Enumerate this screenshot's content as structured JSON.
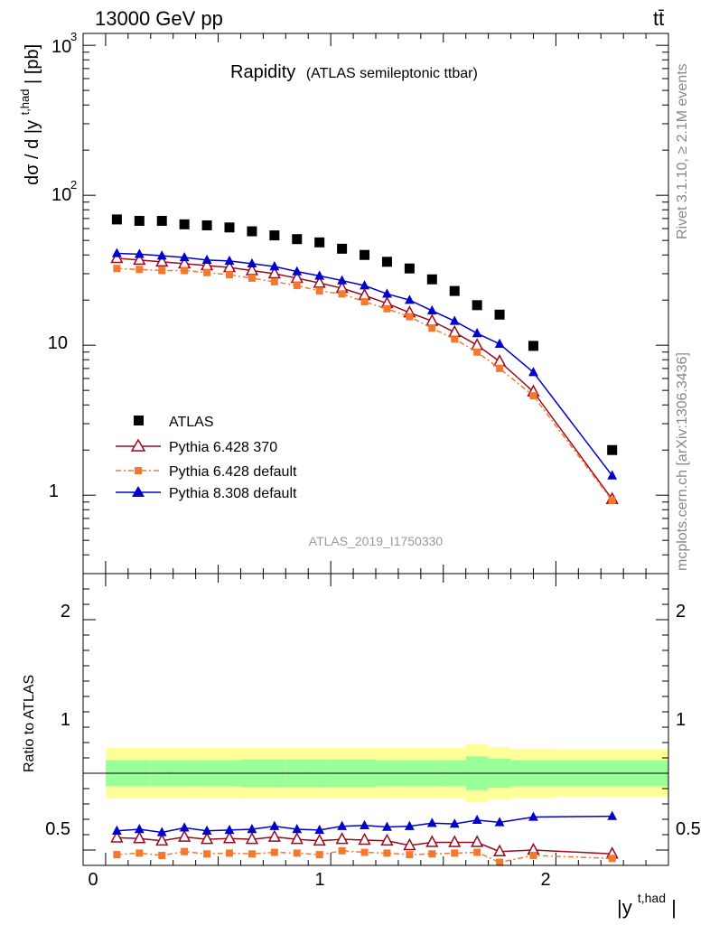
{
  "header": {
    "energy_label": "13000 GeV pp",
    "process_label": "tt̄"
  },
  "side": {
    "rivet_label": "Rivet 3.1.10, ≥ 2.1M events",
    "source_label": "mcplots.cern.ch [arXiv:1306.3436]"
  },
  "colors": {
    "atlas": "#000000",
    "pythia6_370": "#9a0a1e",
    "pythia6_default": "#f5782d",
    "pythia8_default": "#0000cc",
    "band_inner": "#99ff99",
    "band_outer": "#ffff99"
  },
  "chart_data": [
    {
      "type": "scatter",
      "title": "Rapidity",
      "subtitle": "(ATLAS semileptonic ttbar)",
      "ylabel": "dσ / d |y",
      "ylabel_sup": "t,had",
      "ylabel_unit": "| [pb]",
      "yscale": "log",
      "ylim": [
        0.3,
        1200
      ],
      "xlim": [
        -0.1,
        2.5
      ],
      "ytick_labels": [
        "1",
        "10",
        "10",
        "10"
      ],
      "ytick_sups": [
        "",
        "",
        "2",
        "3"
      ],
      "analysis_label": "ATLAS_2019_I1750330",
      "legend_position": "lower-left",
      "x": [
        0.05,
        0.15,
        0.25,
        0.35,
        0.45,
        0.55,
        0.65,
        0.75,
        0.85,
        0.95,
        1.05,
        1.15,
        1.25,
        1.35,
        1.45,
        1.55,
        1.65,
        1.75,
        1.9,
        2.25
      ],
      "series": [
        {
          "name": "ATLAS",
          "marker": "square-filled",
          "values": [
            69,
            67.5,
            67.5,
            64,
            63,
            61,
            57.5,
            54,
            51,
            48.5,
            44,
            40,
            36,
            32.5,
            27.5,
            23,
            18.5,
            16,
            9.9,
            2.0
          ]
        },
        {
          "name": "Pythia 6.428 370",
          "marker": "triangle-open",
          "values": [
            38,
            37,
            36,
            35,
            34,
            33,
            31.5,
            30,
            28,
            26,
            24,
            21.5,
            19,
            16.5,
            14.5,
            12.2,
            10,
            7.8,
            4.9,
            0.94
          ]
        },
        {
          "name": "Pythia 6.428 default",
          "marker": "square-small",
          "values": [
            32.5,
            32,
            31.5,
            31.5,
            30.5,
            29.5,
            28,
            26.5,
            25,
            23,
            22,
            19.5,
            17.5,
            15.5,
            13,
            11,
            9,
            7,
            4.6,
            0.92
          ]
        },
        {
          "name": "Pythia 8.308 default",
          "marker": "triangle-filled",
          "values": [
            41,
            40.5,
            39.5,
            38.5,
            37,
            36.5,
            35,
            33.5,
            31,
            29,
            27,
            25,
            22,
            20,
            17,
            14.5,
            12,
            10.2,
            6.6,
            1.35
          ]
        }
      ]
    },
    {
      "type": "line",
      "ylabel": "Ratio to ATLAS",
      "xlabel": "|y",
      "xlabel_sup": "t,had",
      "xlabel_tail": "|",
      "ylim": [
        0.4,
        2.3
      ],
      "xlim": [
        -0.1,
        2.5
      ],
      "xtick_labels": [
        "0",
        "1",
        "2"
      ],
      "ytick_labels": [
        "0.5",
        "1",
        "2"
      ],
      "x": [
        0.05,
        0.15,
        0.25,
        0.35,
        0.45,
        0.55,
        0.65,
        0.75,
        0.85,
        0.95,
        1.05,
        1.15,
        1.25,
        1.35,
        1.45,
        1.55,
        1.65,
        1.75,
        1.9,
        2.25
      ],
      "bin_edges": [
        0.0,
        0.1,
        0.2,
        0.3,
        0.4,
        0.5,
        0.6,
        0.7,
        0.8,
        0.9,
        1.0,
        1.1,
        1.2,
        1.3,
        1.4,
        1.5,
        1.6,
        1.7,
        1.8,
        2.0,
        2.5
      ],
      "band_inner": [
        0.085,
        0.085,
        0.085,
        0.085,
        0.085,
        0.085,
        0.09,
        0.09,
        0.09,
        0.09,
        0.09,
        0.09,
        0.085,
        0.085,
        0.085,
        0.085,
        0.11,
        0.095,
        0.085,
        0.085
      ],
      "band_outer": [
        0.165,
        0.165,
        0.165,
        0.165,
        0.165,
        0.165,
        0.165,
        0.165,
        0.165,
        0.165,
        0.165,
        0.165,
        0.165,
        0.165,
        0.165,
        0.165,
        0.19,
        0.17,
        0.16,
        0.155
      ],
      "series": [
        {
          "name": "Pythia 6.428 370",
          "values": [
            0.58,
            0.575,
            0.56,
            0.585,
            0.57,
            0.575,
            0.57,
            0.585,
            0.57,
            0.56,
            0.57,
            0.565,
            0.56,
            0.53,
            0.55,
            0.55,
            0.55,
            0.49,
            0.5,
            0.475
          ]
        },
        {
          "name": "Pythia 6.428 default",
          "values": [
            0.47,
            0.48,
            0.465,
            0.49,
            0.475,
            0.48,
            0.475,
            0.485,
            0.48,
            0.47,
            0.495,
            0.485,
            0.48,
            0.47,
            0.475,
            0.48,
            0.485,
            0.42,
            0.465,
            0.445
          ]
        },
        {
          "name": "Pythia 8.308 default",
          "values": [
            0.625,
            0.635,
            0.615,
            0.645,
            0.625,
            0.63,
            0.635,
            0.655,
            0.635,
            0.63,
            0.655,
            0.66,
            0.65,
            0.655,
            0.675,
            0.67,
            0.695,
            0.68,
            0.715,
            0.72
          ]
        }
      ]
    }
  ]
}
